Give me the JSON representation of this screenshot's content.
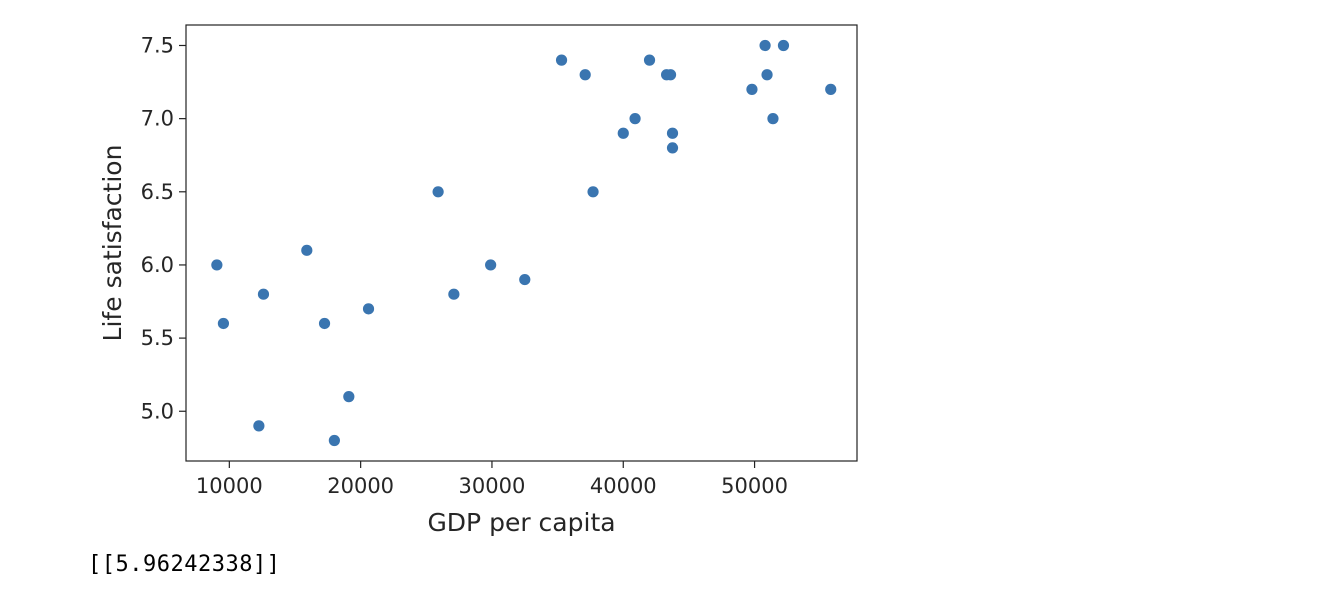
{
  "chart_data": {
    "type": "scatter",
    "title": "",
    "xlabel": "GDP per capita",
    "ylabel": "Life satisfaction",
    "xlim": [
      6700,
      57800
    ],
    "ylim": [
      4.66,
      7.64
    ],
    "xticks": [
      10000,
      20000,
      30000,
      40000,
      50000
    ],
    "yticks": [
      5.0,
      5.5,
      6.0,
      6.5,
      7.0,
      7.5
    ],
    "xtick_labels": [
      "10000",
      "20000",
      "30000",
      "40000",
      "50000"
    ],
    "ytick_labels": [
      "5.0",
      "5.5",
      "6.0",
      "6.5",
      "7.0",
      "7.5"
    ],
    "grid": false,
    "marker_color": "#3a75b0",
    "points": [
      {
        "x": 9050,
        "y": 6.0
      },
      {
        "x": 9550,
        "y": 5.6
      },
      {
        "x": 12250,
        "y": 4.9
      },
      {
        "x": 12600,
        "y": 5.8
      },
      {
        "x": 15900,
        "y": 6.1
      },
      {
        "x": 17250,
        "y": 5.6
      },
      {
        "x": 18000,
        "y": 4.8
      },
      {
        "x": 19100,
        "y": 5.1
      },
      {
        "x": 20600,
        "y": 5.7
      },
      {
        "x": 25900,
        "y": 6.5
      },
      {
        "x": 27100,
        "y": 5.8
      },
      {
        "x": 29900,
        "y": 6.0
      },
      {
        "x": 32500,
        "y": 5.9
      },
      {
        "x": 35300,
        "y": 7.4
      },
      {
        "x": 37100,
        "y": 7.3
      },
      {
        "x": 37700,
        "y": 6.5
      },
      {
        "x": 40000,
        "y": 6.9
      },
      {
        "x": 40900,
        "y": 7.0
      },
      {
        "x": 42000,
        "y": 7.4
      },
      {
        "x": 43300,
        "y": 7.3
      },
      {
        "x": 43600,
        "y": 7.3
      },
      {
        "x": 43750,
        "y": 6.9
      },
      {
        "x": 43750,
        "y": 6.8
      },
      {
        "x": 49800,
        "y": 7.2
      },
      {
        "x": 50800,
        "y": 7.5
      },
      {
        "x": 50950,
        "y": 7.3
      },
      {
        "x": 51400,
        "y": 7.0
      },
      {
        "x": 52200,
        "y": 7.5
      },
      {
        "x": 55800,
        "y": 7.2
      }
    ]
  },
  "output": {
    "text": "[[5.96242338]]"
  }
}
